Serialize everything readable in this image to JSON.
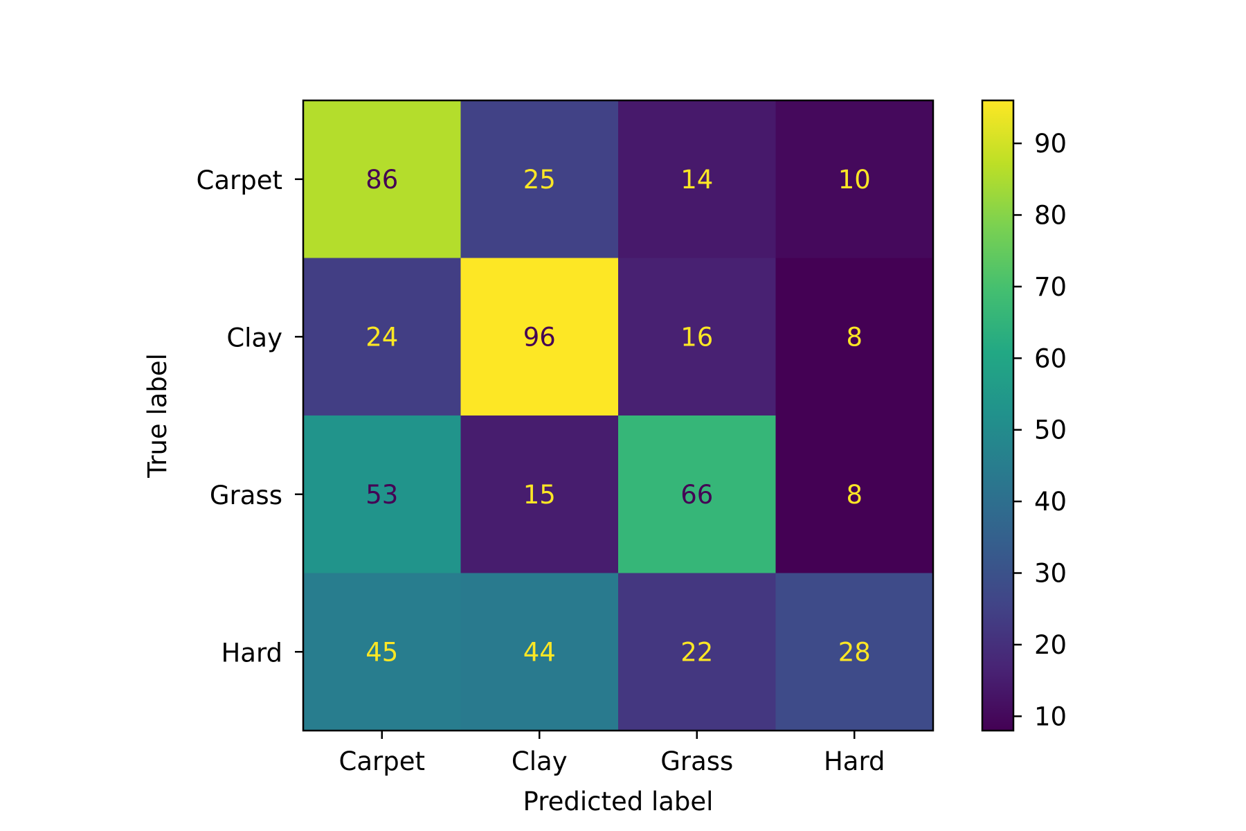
{
  "chart_data": {
    "type": "heatmap",
    "title": "",
    "xlabel": "Predicted label",
    "ylabel": "True label",
    "x_categories": [
      "Carpet",
      "Clay",
      "Grass",
      "Hard"
    ],
    "y_categories": [
      "Carpet",
      "Clay",
      "Grass",
      "Hard"
    ],
    "matrix": [
      [
        86,
        25,
        14,
        10
      ],
      [
        24,
        96,
        16,
        8
      ],
      [
        53,
        15,
        66,
        8
      ],
      [
        45,
        44,
        22,
        28
      ]
    ],
    "colormap": "viridis",
    "color_range": [
      8,
      96
    ],
    "colorbar_ticks": [
      10,
      20,
      30,
      40,
      50,
      60,
      70,
      80,
      90
    ],
    "colorbar_tick_labels": [
      "10",
      "20",
      "30",
      "40",
      "50",
      "60",
      "70",
      "80",
      "90"
    ],
    "text_color_light": "#fde725",
    "text_color_dark": "#440154"
  }
}
